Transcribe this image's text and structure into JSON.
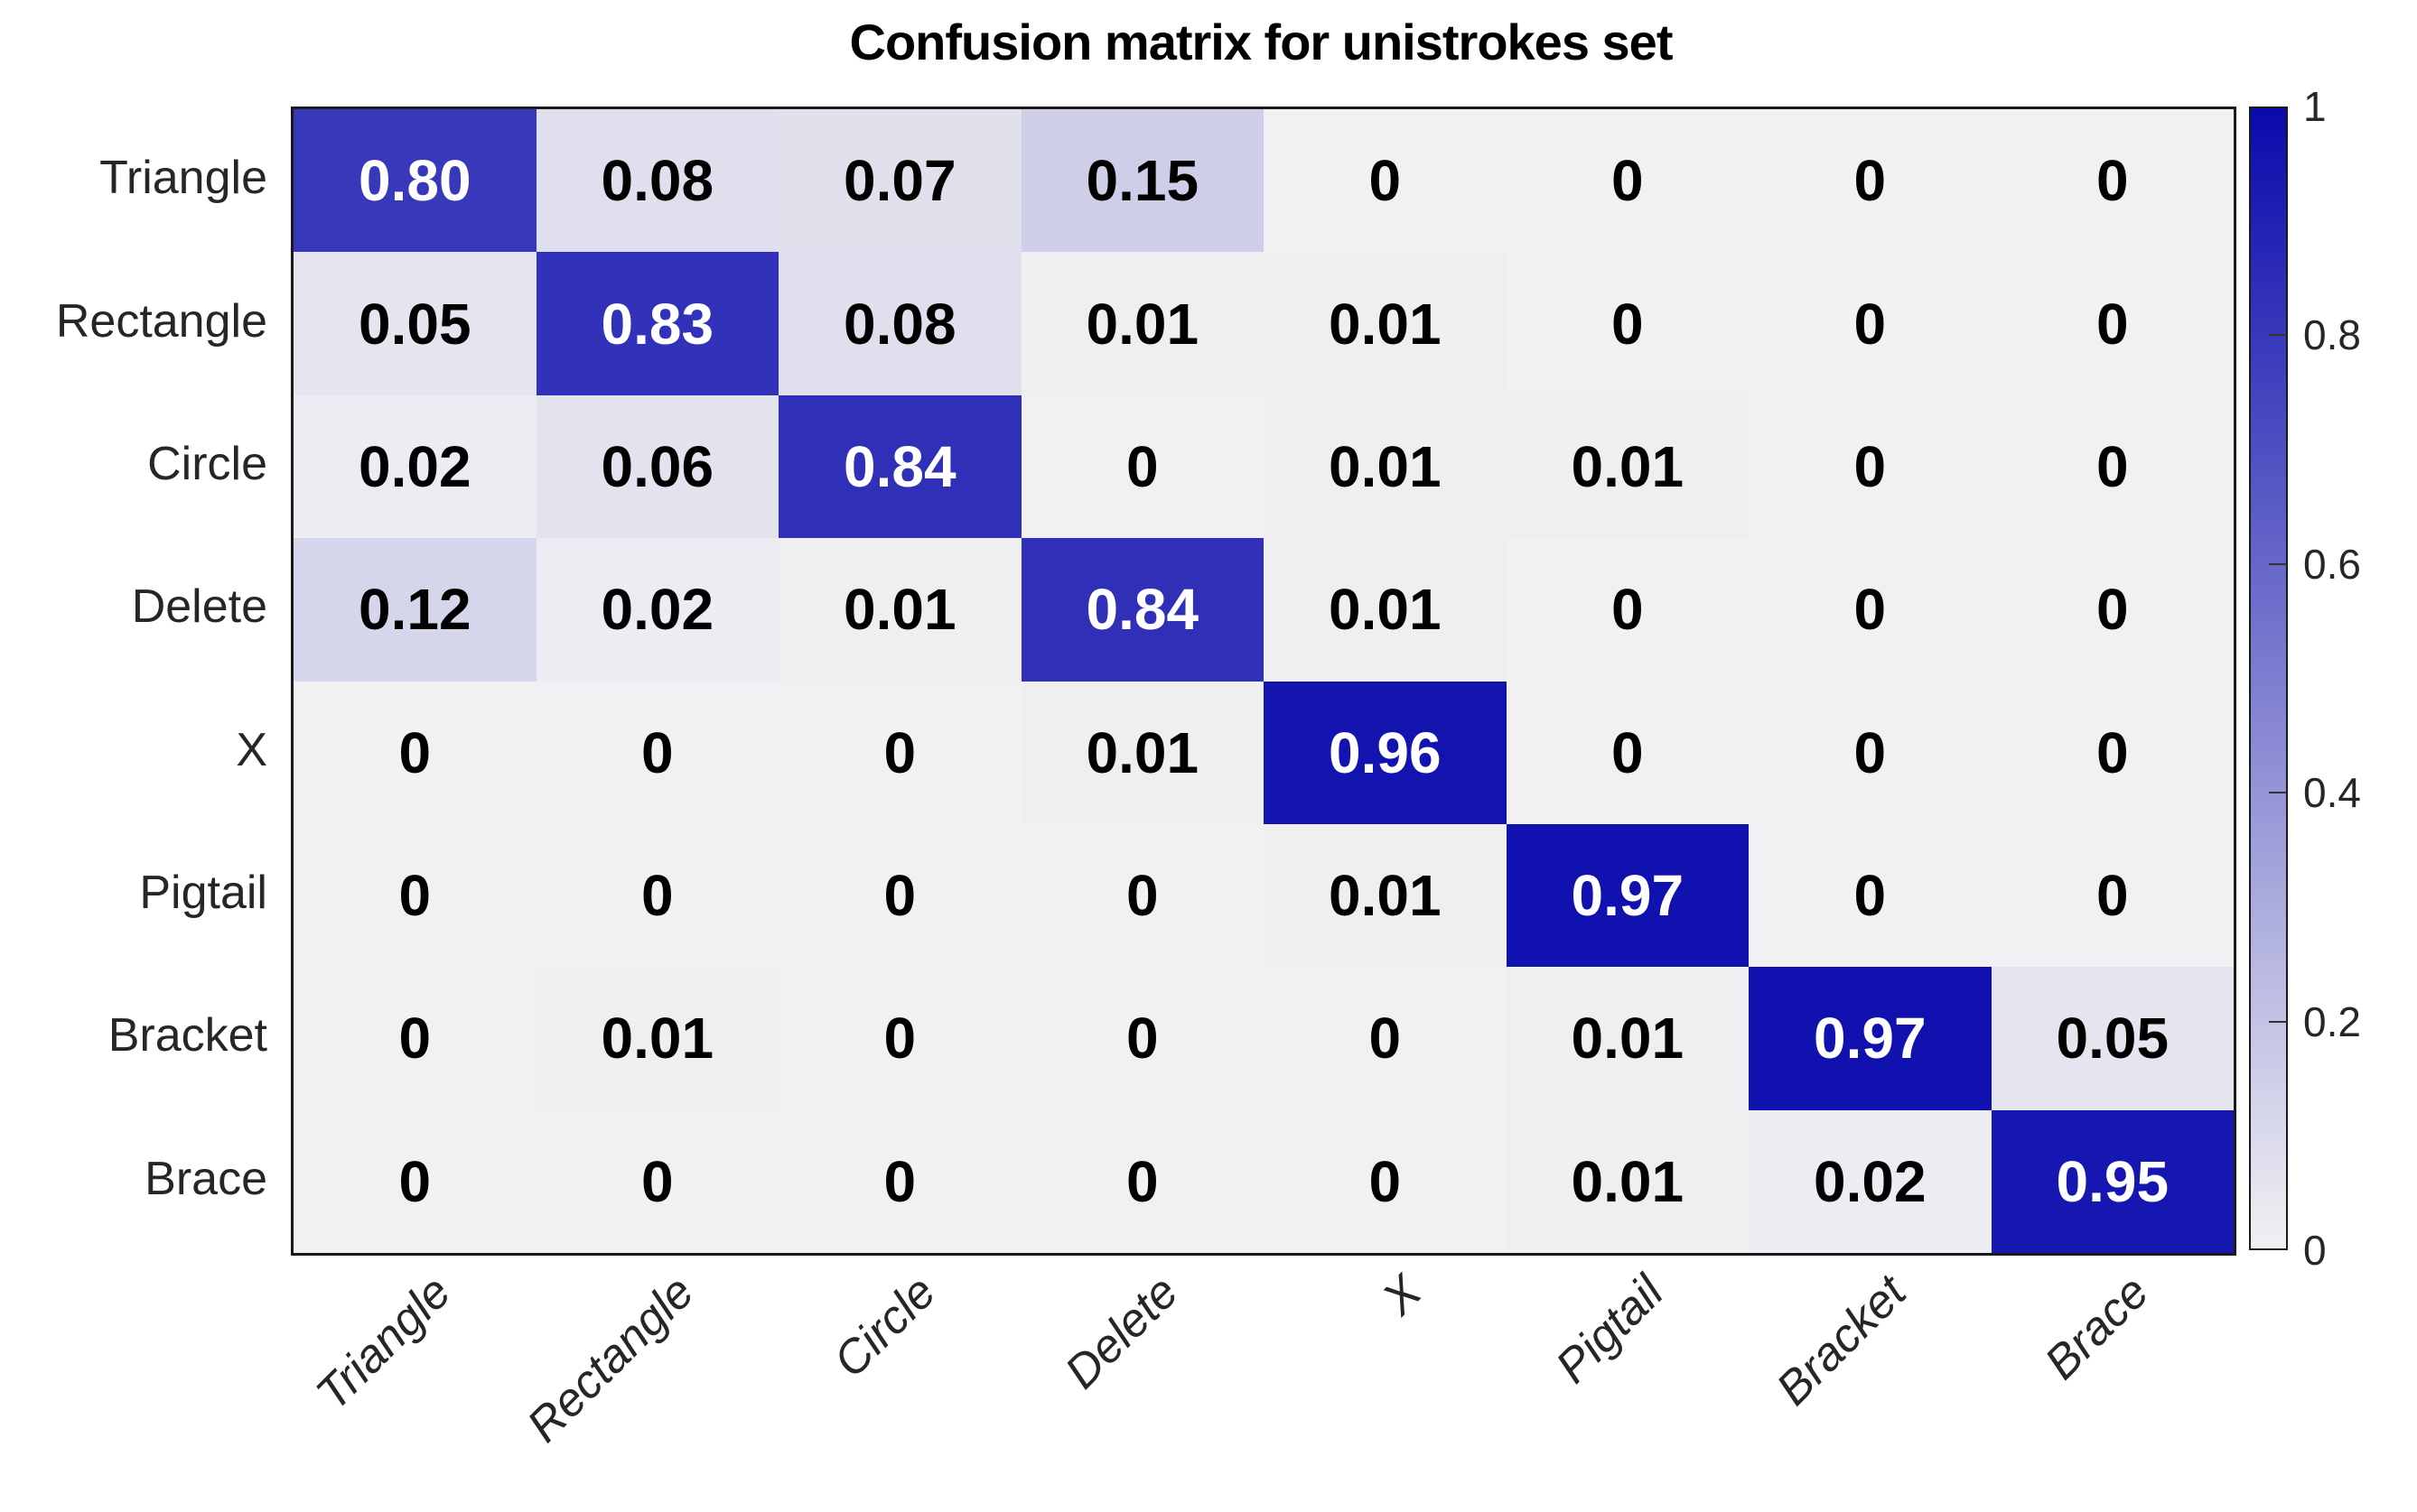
{
  "title": "Confusion matrix for unistrokes set",
  "chart_data": {
    "type": "heatmap",
    "title": "Confusion matrix for unistrokes set",
    "row_labels": [
      "Triangle",
      "Rectangle",
      "Circle",
      "Delete",
      "X",
      "Pigtail",
      "Bracket",
      "Brace"
    ],
    "col_labels": [
      "Triangle",
      "Rectangle",
      "Circle",
      "Delete",
      "X",
      "Pigtail",
      "Bracket",
      "Brace"
    ],
    "matrix": [
      [
        0.8,
        0.08,
        0.07,
        0.15,
        0,
        0,
        0,
        0
      ],
      [
        0.05,
        0.83,
        0.08,
        0.01,
        0.01,
        0,
        0,
        0
      ],
      [
        0.02,
        0.06,
        0.84,
        0,
        0.01,
        0.01,
        0,
        0
      ],
      [
        0.12,
        0.02,
        0.01,
        0.84,
        0.01,
        0,
        0,
        0
      ],
      [
        0,
        0,
        0,
        0.01,
        0.96,
        0,
        0,
        0
      ],
      [
        0,
        0,
        0,
        0,
        0.01,
        0.97,
        0,
        0
      ],
      [
        0,
        0.01,
        0,
        0,
        0,
        0.01,
        0.97,
        0.05
      ],
      [
        0,
        0,
        0,
        0,
        0,
        0.01,
        0.02,
        0.95
      ]
    ],
    "value_range": [
      0,
      1
    ],
    "colorbar": {
      "position": "right",
      "tick_values": [
        1,
        0.8,
        0.6,
        0.4,
        0.2,
        0
      ],
      "tick_labels": [
        "1",
        "0.8",
        "0.6",
        "0.4",
        "0.2",
        "0"
      ],
      "interior_tick_values": [
        0.8,
        0.6,
        0.4,
        0.2
      ]
    },
    "colormap": {
      "low": "#f1f1f3",
      "high": "#0a0aad"
    },
    "text_colors": {
      "light_cell_text": "#000000",
      "dark_cell_text": "#ffffff",
      "white_text_threshold": 0.5
    },
    "grid": false,
    "x_label_rotation_deg": 45
  }
}
